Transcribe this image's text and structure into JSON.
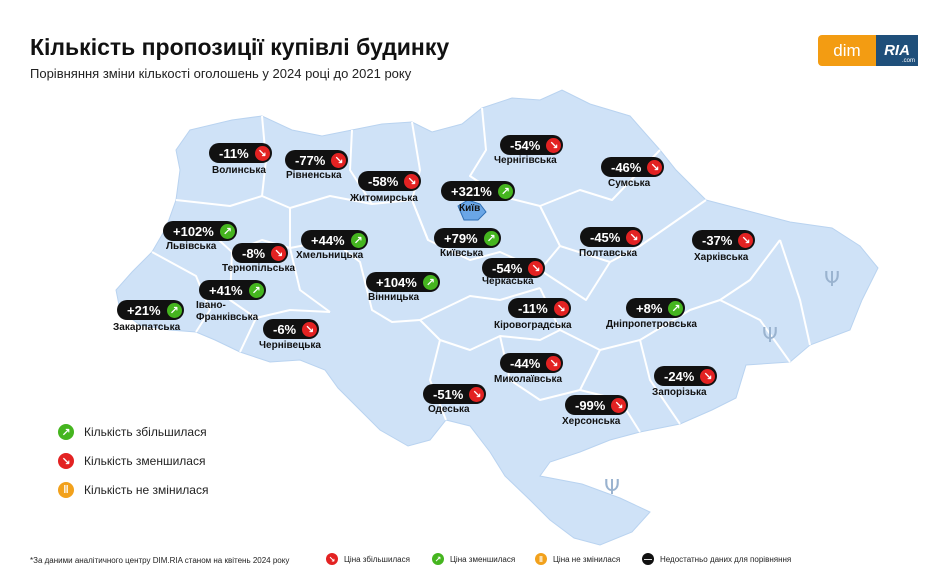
{
  "header": {
    "title": "Кількість пропозиції купівлі будинку",
    "subtitle": "Порівняння зміни кількості оголошень у 2024 році до 2021 року"
  },
  "logo": {
    "dim": "dim",
    "ria": "RIA",
    "ria_suffix": ".com"
  },
  "colors": {
    "map_fill": "#cfe2f7",
    "map_border": "#ffffff",
    "decrease": "#e32222",
    "increase": "#45b51f",
    "unchanged": "#f2a11c",
    "badge": "#111111"
  },
  "regions": [
    {
      "name": "Волинська",
      "value": "-11%",
      "trend": "down"
    },
    {
      "name": "Рівненська",
      "value": "-77%",
      "trend": "down"
    },
    {
      "name": "Житомирська",
      "value": "-58%",
      "trend": "down"
    },
    {
      "name": "Київ",
      "value": "+321%",
      "trend": "up"
    },
    {
      "name": "Чернігівська",
      "value": "-54%",
      "trend": "down"
    },
    {
      "name": "Сумська",
      "value": "-46%",
      "trend": "down"
    },
    {
      "name": "Львівська",
      "value": "+102%",
      "trend": "up"
    },
    {
      "name": "Тернопільська",
      "value": "-8%",
      "trend": "down"
    },
    {
      "name": "Хмельницька",
      "value": "+44%",
      "trend": "up"
    },
    {
      "name": "Київська",
      "value": "+79%",
      "trend": "up"
    },
    {
      "name": "Полтавська",
      "value": "-45%",
      "trend": "down"
    },
    {
      "name": "Харківська",
      "value": "-37%",
      "trend": "down"
    },
    {
      "name": "Івано-Франківська",
      "value": "+41%",
      "trend": "up"
    },
    {
      "name": "Черкаська",
      "value": "-54%",
      "trend": "down"
    },
    {
      "name": "Вінницька",
      "value": "+104%",
      "trend": "up"
    },
    {
      "name": "Закарпатська",
      "value": "+21%",
      "trend": "up"
    },
    {
      "name": "Кіровоградська",
      "value": "-11%",
      "trend": "down"
    },
    {
      "name": "Дніпропетровська",
      "value": "+8%",
      "trend": "up"
    },
    {
      "name": "Чернівецька",
      "value": "-6%",
      "trend": "down"
    },
    {
      "name": "Миколаївська",
      "value": "-44%",
      "trend": "down"
    },
    {
      "name": "Запорізька",
      "value": "-24%",
      "trend": "down"
    },
    {
      "name": "Одеська",
      "value": "-51%",
      "trend": "down"
    },
    {
      "name": "Херсонська",
      "value": "-99%",
      "trend": "down"
    }
  ],
  "legend": [
    {
      "label": "Кількість збільшилася",
      "trend": "up"
    },
    {
      "label": "Кількість зменшилася",
      "trend": "down"
    },
    {
      "label": "Кількість не змінилася",
      "trend": "same"
    }
  ],
  "footer": {
    "note": "*За даними аналітичного центру DIM.RIA станом на квітень 2024 року",
    "items": [
      {
        "label": "Ціна збільшилася",
        "trend": "down"
      },
      {
        "label": "Ціна зменшилася",
        "trend": "up"
      },
      {
        "label": "Ціна не змінилася",
        "trend": "same"
      },
      {
        "label": "Недостатньо даних для порівняння",
        "trend": "none"
      }
    ]
  }
}
